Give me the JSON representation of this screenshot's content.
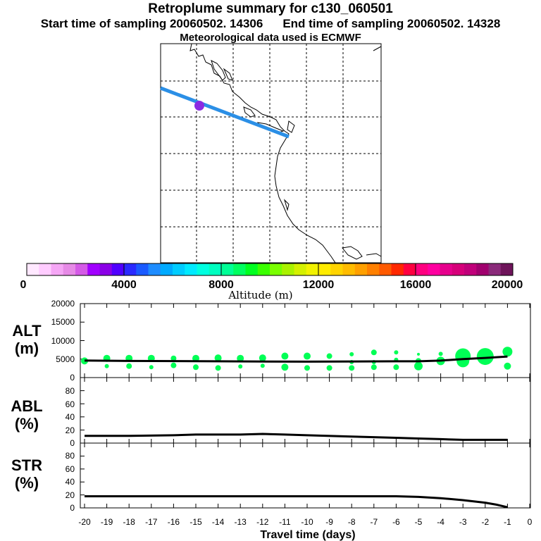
{
  "header": {
    "title": "Retroplume summary for c130_060501",
    "start_time": "Start time of sampling 20060502. 14306",
    "end_time": "End time of sampling 20060502. 14328",
    "met_data": "Meteorological data used is ECMWF"
  },
  "colors": {
    "trajectory": "#2b8fe6",
    "release_point": "#8a2be2",
    "dots": "#00ff55",
    "median_line": "#000000"
  },
  "colorbar": {
    "label": "Altitude (m)",
    "ticks": [
      "0",
      "4000",
      "8000",
      "12000",
      "16000",
      "20000"
    ],
    "colors": [
      "#ffe8ff",
      "#ffccff",
      "#f5a6f5",
      "#e68ae6",
      "#d45ae6",
      "#a100ff",
      "#8a00e6",
      "#5000ff",
      "#2a2aff",
      "#1a5aff",
      "#1e8cff",
      "#00aaff",
      "#00ccff",
      "#00eaff",
      "#00ffe0",
      "#00ffc0",
      "#00ff96",
      "#00ff60",
      "#00ff20",
      "#3aff00",
      "#7aff00",
      "#aaf200",
      "#d4f000",
      "#f2f200",
      "#ffec00",
      "#ffd400",
      "#ffbc00",
      "#ffa000",
      "#ff8000",
      "#ff5a00",
      "#ff2800",
      "#ff0040",
      "#ff0080",
      "#ff00a0",
      "#e6008c",
      "#d6007a",
      "#c0007a",
      "#a0006e",
      "#8a2a7a",
      "#6e145a"
    ]
  },
  "chart_data": [
    {
      "type": "scatter",
      "panel": "ALT",
      "title": "ALT",
      "unit": "(m)",
      "ylim": [
        0,
        20000
      ],
      "yticks": [
        "0",
        "5000",
        "10000",
        "15000",
        "20000"
      ],
      "x": [
        -20,
        -19,
        -18,
        -17,
        -16,
        -15,
        -14,
        -13,
        -12,
        -11,
        -10,
        -9,
        -8,
        -7,
        -6,
        -5,
        -4,
        -3,
        -2,
        -1
      ],
      "points": [
        {
          "x": -20,
          "y": 4500,
          "s": 5
        },
        {
          "x": -19,
          "y": 5200,
          "s": 5
        },
        {
          "x": -19,
          "y": 3100,
          "s": 3
        },
        {
          "x": -18,
          "y": 5200,
          "s": 5
        },
        {
          "x": -18,
          "y": 3100,
          "s": 4
        },
        {
          "x": -17,
          "y": 5200,
          "s": 5
        },
        {
          "x": -17,
          "y": 2800,
          "s": 3
        },
        {
          "x": -16,
          "y": 5200,
          "s": 4
        },
        {
          "x": -16,
          "y": 3300,
          "s": 4
        },
        {
          "x": -15,
          "y": 5200,
          "s": 5
        },
        {
          "x": -15,
          "y": 2800,
          "s": 4
        },
        {
          "x": -14,
          "y": 5300,
          "s": 5
        },
        {
          "x": -14,
          "y": 2600,
          "s": 4
        },
        {
          "x": -13,
          "y": 5200,
          "s": 5
        },
        {
          "x": -13,
          "y": 3000,
          "s": 3
        },
        {
          "x": -12,
          "y": 5300,
          "s": 5
        },
        {
          "x": -12,
          "y": 3200,
          "s": 3
        },
        {
          "x": -11,
          "y": 5800,
          "s": 5
        },
        {
          "x": -11,
          "y": 2800,
          "s": 5
        },
        {
          "x": -10,
          "y": 5800,
          "s": 5
        },
        {
          "x": -10,
          "y": 2600,
          "s": 4
        },
        {
          "x": -9,
          "y": 5800,
          "s": 4
        },
        {
          "x": -9,
          "y": 2600,
          "s": 4
        },
        {
          "x": -8,
          "y": 6300,
          "s": 3
        },
        {
          "x": -8,
          "y": 4200,
          "s": 3
        },
        {
          "x": -8,
          "y": 2600,
          "s": 4
        },
        {
          "x": -7,
          "y": 6800,
          "s": 4
        },
        {
          "x": -7,
          "y": 4200,
          "s": 3
        },
        {
          "x": -7,
          "y": 2800,
          "s": 4
        },
        {
          "x": -6,
          "y": 6800,
          "s": 3
        },
        {
          "x": -6,
          "y": 4800,
          "s": 3
        },
        {
          "x": -6,
          "y": 2800,
          "s": 4
        },
        {
          "x": -5,
          "y": 6300,
          "s": 2
        },
        {
          "x": -5,
          "y": 4500,
          "s": 4
        },
        {
          "x": -5,
          "y": 3100,
          "s": 6
        },
        {
          "x": -4,
          "y": 6400,
          "s": 3
        },
        {
          "x": -4,
          "y": 4500,
          "s": 6
        },
        {
          "x": -3,
          "y": 5800,
          "s": 11
        },
        {
          "x": -3,
          "y": 4500,
          "s": 9
        },
        {
          "x": -2,
          "y": 5700,
          "s": 12
        },
        {
          "x": -2,
          "y": 5000,
          "s": 8
        },
        {
          "x": -1,
          "y": 7000,
          "s": 7
        },
        {
          "x": -1,
          "y": 3100,
          "s": 5
        }
      ],
      "median": [
        [
          -20,
          4600
        ],
        [
          -18,
          4500
        ],
        [
          -14,
          4400
        ],
        [
          -10,
          4300
        ],
        [
          -6,
          4400
        ],
        [
          -5,
          4400
        ],
        [
          -4,
          4600
        ],
        [
          -3,
          5000
        ],
        [
          -2,
          5300
        ],
        [
          -1,
          5700
        ]
      ]
    },
    {
      "type": "line",
      "panel": "ABL",
      "title": "ABL",
      "unit": "(%)",
      "ylim": [
        0,
        100
      ],
      "yticks": [
        "0",
        "20",
        "40",
        "60",
        "80"
      ],
      "values": [
        [
          -20,
          11
        ],
        [
          -18,
          11
        ],
        [
          -16,
          12
        ],
        [
          -15,
          13
        ],
        [
          -14,
          13
        ],
        [
          -13,
          13
        ],
        [
          -12,
          14
        ],
        [
          -11,
          13
        ],
        [
          -10,
          12
        ],
        [
          -8,
          10
        ],
        [
          -6,
          8
        ],
        [
          -5,
          7
        ],
        [
          -4,
          6
        ],
        [
          -3,
          5
        ],
        [
          -2,
          5
        ],
        [
          -1,
          5
        ]
      ]
    },
    {
      "type": "line",
      "panel": "STR",
      "title": "STR",
      "unit": "(%)",
      "ylim": [
        0,
        100
      ],
      "yticks": [
        "0",
        "20",
        "40",
        "60",
        "80"
      ],
      "values": [
        [
          -20,
          18
        ],
        [
          -19,
          18
        ],
        [
          -15,
          18
        ],
        [
          -10,
          18
        ],
        [
          -6,
          18
        ],
        [
          -5,
          17
        ],
        [
          -4,
          15
        ],
        [
          -3,
          12
        ],
        [
          -2,
          8
        ],
        [
          -1.5,
          5
        ],
        [
          -1,
          1
        ]
      ]
    }
  ],
  "xaxis": {
    "label": "Travel time (days)",
    "ticks": [
      "-20",
      "-19",
      "-18",
      "-17",
      "-16",
      "-15",
      "-14",
      "-13",
      "-12",
      "-11",
      "-10",
      "-9",
      "-8",
      "-7",
      "-6",
      "-5",
      "-4",
      "-3",
      "-2",
      "-1",
      "0"
    ],
    "tick_values": [
      -20,
      -19,
      -18,
      -17,
      -16,
      -15,
      -14,
      -13,
      -12,
      -11,
      -10,
      -9,
      -8,
      -7,
      -6,
      -5,
      -4,
      -3,
      -2,
      -1,
      0
    ],
    "xlim": [
      -20,
      0
    ]
  }
}
